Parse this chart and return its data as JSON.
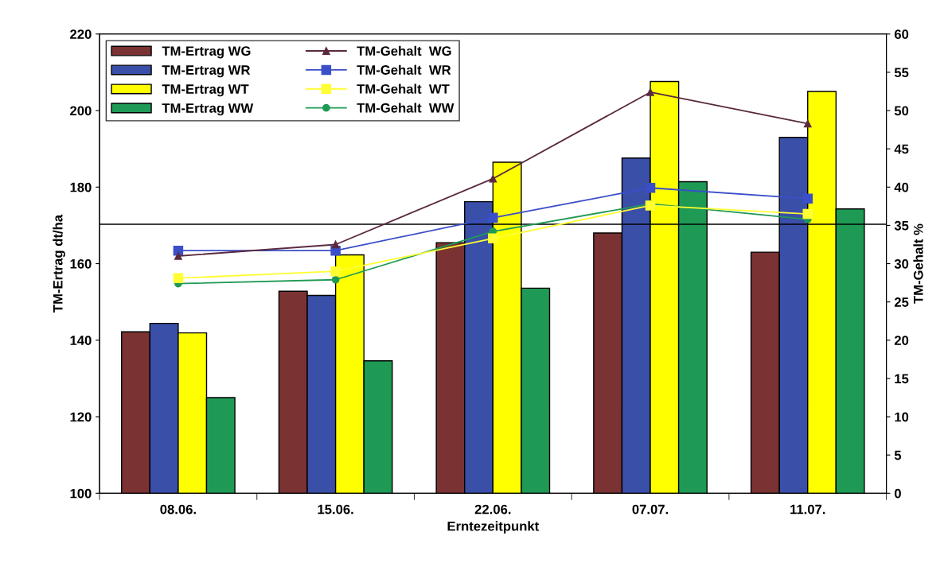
{
  "chart_data": {
    "type": "bar",
    "xlabel": "Erntezeitpunkt",
    "ylabel": "TM-Ertrag dt/ha",
    "y2label": "TM-Gehalt %",
    "categories": [
      "08.06.",
      "15.06.",
      "22.06.",
      "07.07.",
      "11.07."
    ],
    "series": [
      {
        "name": "TM-Ertrag WG",
        "color": "#7b3232",
        "values": [
          142.2,
          152.8,
          165.5,
          168,
          163
        ]
      },
      {
        "name": "TM-Ertrag WR",
        "color": "#3a4fa8",
        "values": [
          144.4,
          151.7,
          176.2,
          187.6,
          193
        ]
      },
      {
        "name": "TM-Ertrag WT",
        "color": "#ffff00",
        "values": [
          141.9,
          162.3,
          186.5,
          207.6,
          205
        ]
      },
      {
        "name": "TM-Ertrag WW",
        "color": "#1f9a55",
        "values": [
          125,
          134.6,
          153.6,
          181.4,
          174.3
        ]
      },
      {
        "name": "TM-Gehalt  WG",
        "type": "line",
        "axis": "y2",
        "marker": "triangle",
        "color": "#5a2a40",
        "values": [
          31.0,
          32.5,
          41.1,
          52.4,
          48.3
        ]
      },
      {
        "name": "TM-Gehalt  WR",
        "type": "line",
        "axis": "y2",
        "marker": "square",
        "color": "#3a4fc8",
        "values": [
          31.7,
          31.7,
          36.0,
          39.9,
          38.5
        ]
      },
      {
        "name": "TM-Gehalt  WT",
        "type": "line",
        "axis": "y2",
        "marker": "square",
        "color": "#ffff33",
        "values": [
          28.1,
          29.0,
          33.3,
          37.6,
          36.5
        ]
      },
      {
        "name": "TM-Gehalt  WW",
        "type": "line",
        "axis": "y2",
        "marker": "circle",
        "color": "#1f9a55",
        "values": [
          27.4,
          27.9,
          34.2,
          37.8,
          35.8
        ]
      }
    ],
    "ylim": [
      100,
      220
    ],
    "yticks": [
      100,
      120,
      140,
      160,
      180,
      200,
      220
    ],
    "y2lim": [
      0,
      60
    ],
    "y2ticks": [
      0,
      5,
      10,
      15,
      20,
      25,
      30,
      35,
      40,
      45,
      50,
      55,
      60
    ],
    "ref_lines": [
      {
        "axis": "y",
        "value": 170.3,
        "color": "#000000"
      }
    ],
    "grid": false,
    "legend": "top left"
  }
}
